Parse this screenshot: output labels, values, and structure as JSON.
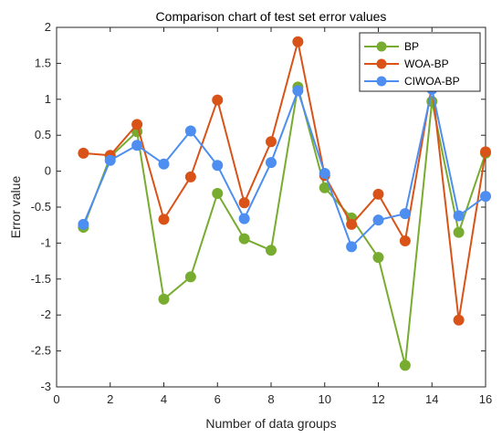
{
  "chart_data": {
    "type": "line",
    "title": "Comparison chart of test set error values",
    "xlabel": "Number of data groups",
    "ylabel": "Error value",
    "xlim": [
      0,
      16
    ],
    "ylim": [
      -3,
      2
    ],
    "xticks": [
      0,
      2,
      4,
      6,
      8,
      10,
      12,
      14,
      16
    ],
    "yticks": [
      -3,
      -2.5,
      -2,
      -1.5,
      -1,
      -0.5,
      0,
      0.5,
      1,
      1.5,
      2
    ],
    "grid": false,
    "legend_position": "top-right",
    "x": [
      1,
      2,
      3,
      4,
      5,
      6,
      7,
      8,
      9,
      10,
      11,
      12,
      13,
      14,
      15,
      16
    ],
    "series": [
      {
        "name": "BP",
        "color": "#77AC30",
        "values": [
          -0.78,
          0.2,
          0.55,
          -1.78,
          -1.47,
          -0.31,
          -0.94,
          -1.1,
          1.17,
          -0.23,
          -0.65,
          -1.2,
          -2.7,
          0.97,
          -0.85,
          0.25
        ]
      },
      {
        "name": "WOA-BP",
        "color": "#D95319",
        "values": [
          0.25,
          0.22,
          0.65,
          -0.67,
          -0.08,
          0.99,
          -0.44,
          0.41,
          1.8,
          -0.06,
          -0.74,
          -0.32,
          -0.97,
          1.2,
          -2.07,
          0.27
        ]
      },
      {
        "name": "CIWOA-BP",
        "color": "#4D8EF0",
        "values": [
          -0.74,
          0.15,
          0.36,
          0.1,
          0.56,
          0.08,
          -0.66,
          0.12,
          1.12,
          -0.03,
          -1.05,
          -0.68,
          -0.59,
          1.14,
          -0.62,
          -0.35
        ]
      }
    ]
  }
}
